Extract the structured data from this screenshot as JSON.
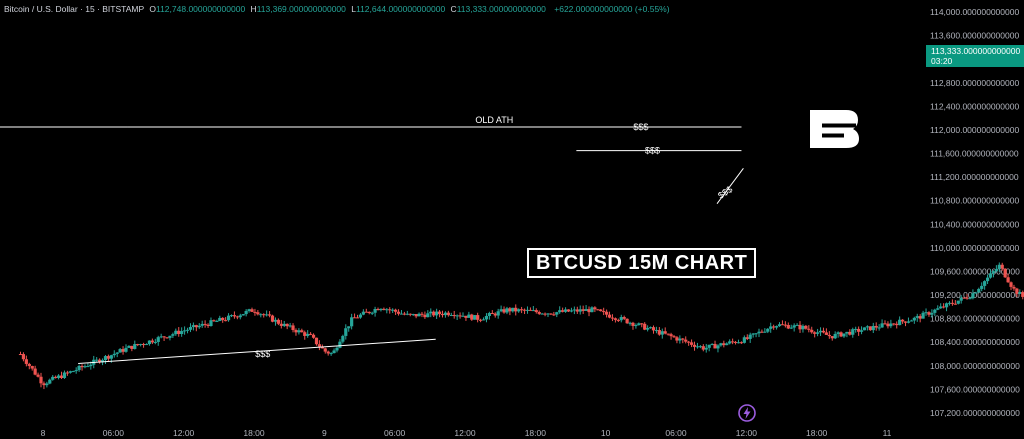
{
  "header": {
    "symbol": "Bitcoin / U.S. Dollar · 15 · BITSTAMP",
    "open_label": "O",
    "open": "112,748.000000000000",
    "high_label": "H",
    "high": "113,369.000000000000",
    "low_label": "L",
    "low": "112,644.000000000000",
    "close_label": "C",
    "close": "113,333.000000000000",
    "change": "+622.000000000000 (+0.55%)"
  },
  "price_tag": {
    "price": "113,333.000000000000",
    "countdown": "03:20",
    "color": "#0a9981"
  },
  "colors": {
    "up": "#26a69a",
    "down": "#ef5350",
    "background": "#000000",
    "annotation": "#ffffff"
  },
  "icons": {
    "logo": "b-logo-icon",
    "badge": "lightning-icon"
  },
  "chart_data": {
    "type": "candlestick",
    "title": "BTCUSD 15M CHART",
    "ylim": [
      107000,
      114200
    ],
    "y_ticks": [
      "114,000.000000000000",
      "113,600.000000000000",
      "113,200.000000000000",
      "112,800.000000000000",
      "112,400.000000000000",
      "112,000.000000000000",
      "111,600.000000000000",
      "111,200.000000000000",
      "110,800.000000000000",
      "110,400.000000000000",
      "110,000.000000000000",
      "109,600.000000000000",
      "109,200.000000000000",
      "108,800.000000000000",
      "108,400.000000000000",
      "108,000.000000000000",
      "107,600.000000000000",
      "107,200.000000000000"
    ],
    "y_tick_values": [
      114000,
      113600,
      113200,
      112800,
      112400,
      112000,
      111600,
      111200,
      110800,
      110400,
      110000,
      109600,
      109200,
      108800,
      108400,
      108000,
      107600,
      107200
    ],
    "x_ticks": [
      {
        "label": "8",
        "day": 8,
        "hour": 0
      },
      {
        "label": "06:00",
        "day": 8,
        "hour": 6
      },
      {
        "label": "12:00",
        "day": 8,
        "hour": 12
      },
      {
        "label": "18:00",
        "day": 8,
        "hour": 18
      },
      {
        "label": "9",
        "day": 9,
        "hour": 0
      },
      {
        "label": "06:00",
        "day": 9,
        "hour": 6
      },
      {
        "label": "12:00",
        "day": 9,
        "hour": 12
      },
      {
        "label": "18:00",
        "day": 9,
        "hour": 18
      },
      {
        "label": "10",
        "day": 10,
        "hour": 0
      },
      {
        "label": "06:00",
        "day": 10,
        "hour": 6
      },
      {
        "label": "12:00",
        "day": 10,
        "hour": 12
      },
      {
        "label": "18:00",
        "day": 10,
        "hour": 18
      },
      {
        "label": "11",
        "day": 11,
        "hour": 0
      }
    ],
    "price_path": [
      [
        7.92,
        108200
      ],
      [
        8.0,
        107700
      ],
      [
        8.1,
        107900
      ],
      [
        8.3,
        108300
      ],
      [
        8.5,
        108600
      ],
      [
        8.65,
        108800
      ],
      [
        8.75,
        108950
      ],
      [
        8.85,
        108700
      ],
      [
        8.95,
        108500
      ],
      [
        9.0,
        108250
      ],
      [
        9.03,
        108200
      ],
      [
        9.06,
        108500
      ],
      [
        9.1,
        108800
      ],
      [
        9.2,
        109000
      ],
      [
        9.3,
        108850
      ],
      [
        9.45,
        108900
      ],
      [
        9.55,
        108800
      ],
      [
        9.65,
        108950
      ],
      [
        9.8,
        108900
      ],
      [
        9.95,
        108950
      ],
      [
        10.05,
        108800
      ],
      [
        10.2,
        108550
      ],
      [
        10.35,
        108300
      ],
      [
        10.5,
        108450
      ],
      [
        10.6,
        108700
      ],
      [
        10.7,
        108650
      ],
      [
        10.8,
        108500
      ],
      [
        10.9,
        108600
      ],
      [
        11.1,
        108800
      ],
      [
        11.3,
        109200
      ],
      [
        11.4,
        109700
      ],
      [
        11.45,
        109300
      ],
      [
        11.55,
        108900
      ],
      [
        11.62,
        108650
      ],
      [
        11.7,
        109000
      ],
      [
        11.8,
        109300
      ],
      [
        11.9,
        109250
      ],
      [
        12.0,
        109500
      ],
      [
        12.08,
        109900
      ],
      [
        12.15,
        110400
      ],
      [
        12.22,
        111200
      ],
      [
        12.3,
        111900
      ],
      [
        12.36,
        111500
      ],
      [
        12.45,
        111000
      ],
      [
        12.55,
        111100
      ],
      [
        12.65,
        111250
      ],
      [
        12.78,
        111400
      ],
      [
        12.9,
        111300
      ],
      [
        13.0,
        111200
      ],
      [
        13.15,
        111450
      ],
      [
        13.3,
        111300
      ],
      [
        13.45,
        111200
      ],
      [
        13.6,
        111350
      ],
      [
        13.75,
        111500
      ],
      [
        13.9,
        111350
      ],
      [
        14.05,
        111200
      ],
      [
        14.2,
        111000
      ],
      [
        14.35,
        110950
      ],
      [
        14.45,
        110900
      ],
      [
        14.55,
        111050
      ],
      [
        14.65,
        111200
      ],
      [
        14.72,
        111450
      ],
      [
        14.78,
        111900
      ],
      [
        14.82,
        112350
      ],
      [
        14.88,
        112800
      ],
      [
        14.94,
        113050
      ],
      [
        14.98,
        113333
      ]
    ],
    "series": [
      {
        "name": "OLD ATH",
        "values": [
          {
            "x": "2025-07-08 07:15",
            "y": 112050
          },
          {
            "x": "2025-07-10 11:35",
            "y": 112050
          }
        ]
      },
      {
        "name": "$$$",
        "values": [
          {
            "x": "2025-07-09 14:30",
            "y": 112050
          },
          {
            "x": "2025-07-10 11:35",
            "y": 112050
          }
        ]
      },
      {
        "name": "$$$",
        "values": [
          {
            "x": "2025-07-09 21:30",
            "y": 111650
          },
          {
            "x": "2025-07-10 11:35",
            "y": 111650
          }
        ]
      },
      {
        "name": "$$$",
        "values": [
          {
            "x": "2025-07-08 03:00",
            "y": 108040
          },
          {
            "x": "2025-07-09 09:30",
            "y": 108450
          }
        ]
      },
      {
        "name": "$$$",
        "values": [
          {
            "x": "2025-07-10 09:30",
            "y": 110750
          },
          {
            "x": "2025-07-10 11:45",
            "y": 111350
          }
        ]
      }
    ],
    "annotations": [
      {
        "text": "OLD ATH",
        "x": "2025-07-09 14:30",
        "y": 112050
      },
      {
        "text": "$$$",
        "x": "2025-07-10 03:00",
        "y": 112050
      },
      {
        "text": "$$$",
        "x": "2025-07-10 04:00",
        "y": 111650
      },
      {
        "text": "$$$",
        "x": "2025-07-08 18:45",
        "y": 108200
      },
      {
        "text": "$$$",
        "x": "2025-07-10 10:20",
        "y": 110950
      }
    ],
    "projection": [
      [
        15.0,
        112000
      ],
      [
        15.1,
        112450
      ],
      [
        15.2,
        112100
      ],
      [
        15.35,
        111000
      ],
      [
        15.55,
        109200
      ],
      [
        15.77,
        108000
      ]
    ],
    "grid": false,
    "legend": "none"
  }
}
